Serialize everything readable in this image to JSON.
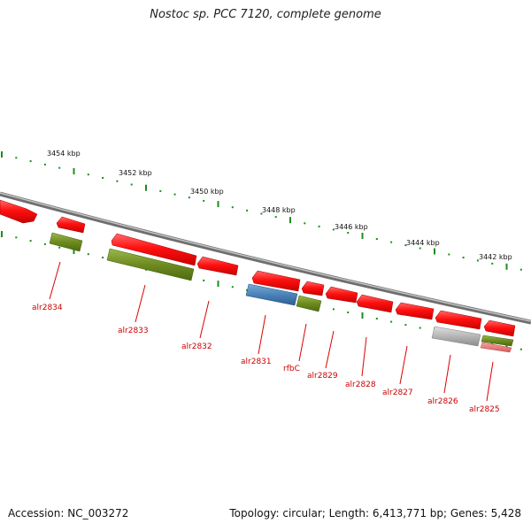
{
  "title": "Nostoc sp. PCC 7120, complete genome",
  "footer": {
    "accession": "Accession: NC_003272",
    "summary": "Topology: circular; Length: 6,413,771 bp; Genes: 5,428"
  },
  "colors": {
    "backbone": "#8a8a8a",
    "forward_cds": "#ff0a0a",
    "gene_green": "#6e8b21",
    "gene_blue": "#4a82b8",
    "gene_gray": "#b5b5b5",
    "gene_pink": "#e57a7a",
    "tick": "#1e8c1e",
    "label_red": "#cc0000"
  },
  "scale_labels": [
    "3454 kbp",
    "3452 kbp",
    "3450 kbp",
    "3448 kbp",
    "3446 kbp",
    "3444 kbp",
    "3442 kbp"
  ],
  "gene_labels": [
    "alr2834",
    "alr2833",
    "alr2832",
    "alr2831",
    "rfbC",
    "alr2829",
    "alr2828",
    "alr2827",
    "alr2826",
    "alr2825"
  ]
}
